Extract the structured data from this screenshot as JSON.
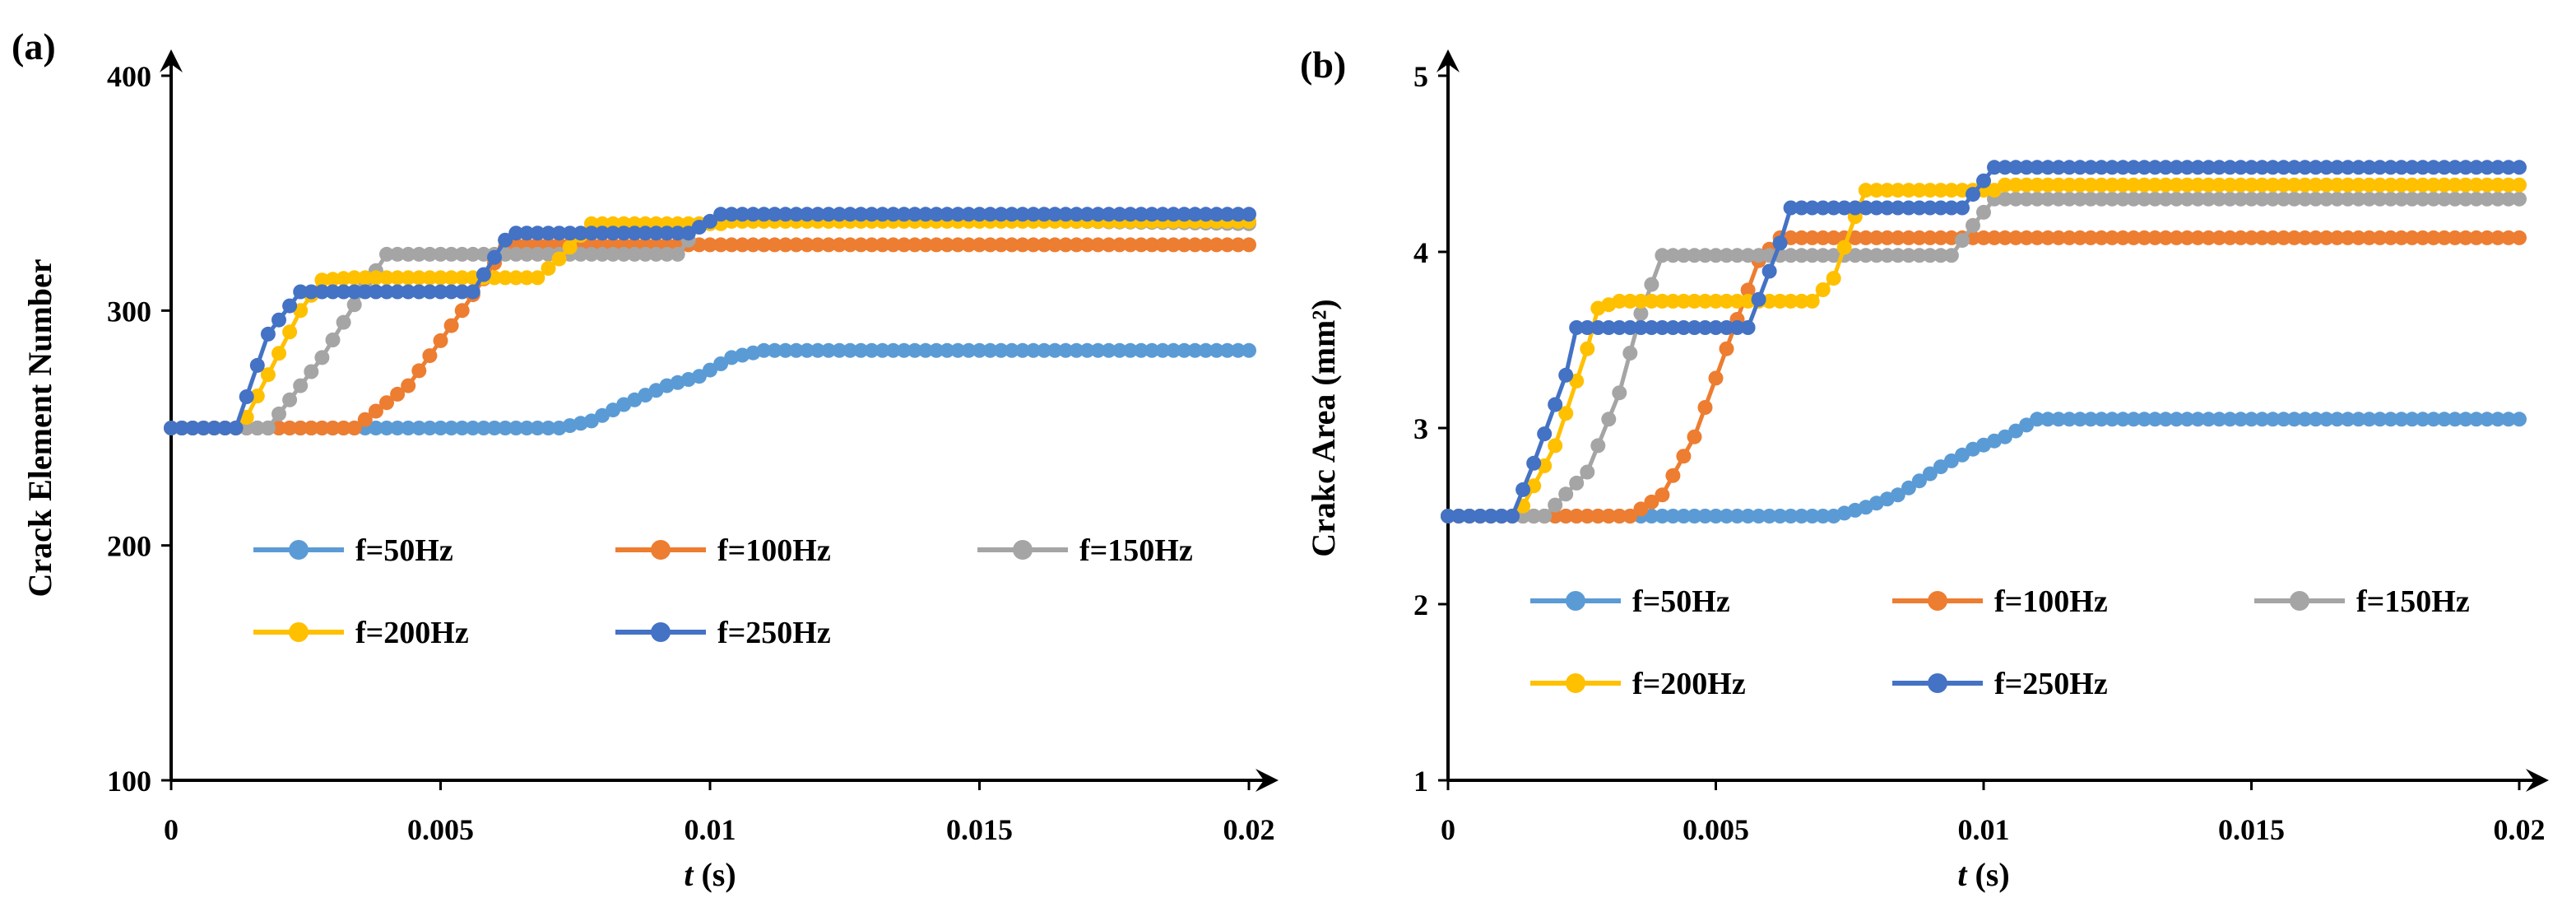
{
  "colors": {
    "f50": "#5B9BD5",
    "f100": "#ED7D31",
    "f150": "#A5A5A5",
    "f200": "#FFC000",
    "f250": "#4472C4"
  },
  "chart_data": [
    {
      "type": "line",
      "panel_label": "(a)",
      "xlabel_var": "t",
      "xlabel_unit": " (s)",
      "ylabel": "Crack Element Number",
      "xlim": [
        0,
        0.02
      ],
      "ylim": [
        100,
        400
      ],
      "xticks": [
        0,
        0.005,
        0.01,
        0.015,
        0.02
      ],
      "xtick_labels": [
        "0",
        "0.005",
        "0.01",
        "0.015",
        "0.02"
      ],
      "yticks": [
        100,
        200,
        300,
        400
      ],
      "ytick_labels": [
        "100",
        "200",
        "300",
        "400"
      ],
      "grid": false,
      "legend_position": "lower middle, inside plot",
      "series": [
        {
          "name": "f=50Hz",
          "color": "#5B9BD5",
          "key": [
            [
              0,
              250
            ],
            [
              0.0072,
              250
            ],
            [
              0.0078,
              253
            ],
            [
              0.0084,
              260
            ],
            [
              0.0092,
              268
            ],
            [
              0.0098,
              272
            ],
            [
              0.0104,
              280
            ],
            [
              0.011,
              283
            ],
            [
              0.02,
              283
            ]
          ]
        },
        {
          "name": "f=100Hz",
          "color": "#ED7D31",
          "key": [
            [
              0,
              250
            ],
            [
              0.0034,
              250
            ],
            [
              0.0044,
              268
            ],
            [
              0.0054,
              300
            ],
            [
              0.0062,
              327
            ],
            [
              0.0064,
              328
            ],
            [
              0.02,
              328
            ]
          ]
        },
        {
          "name": "f=150Hz",
          "color": "#A5A5A5",
          "key": [
            [
              0,
              250
            ],
            [
              0.0018,
              250
            ],
            [
              0.0028,
              280
            ],
            [
              0.0036,
              310
            ],
            [
              0.004,
              324
            ],
            [
              0.0094,
              324
            ],
            [
              0.0098,
              336
            ],
            [
              0.0102,
              340
            ],
            [
              0.02,
              337
            ]
          ]
        },
        {
          "name": "f=200Hz",
          "color": "#FFC000",
          "key": [
            [
              0,
              250
            ],
            [
              0.0013,
              250
            ],
            [
              0.0024,
              300
            ],
            [
              0.0028,
              313
            ],
            [
              0.0034,
              314
            ],
            [
              0.0068,
              314
            ],
            [
              0.0072,
              322
            ],
            [
              0.0078,
              337
            ],
            [
              0.0102,
              337
            ],
            [
              0.0104,
              338
            ],
            [
              0.02,
              338
            ]
          ]
        },
        {
          "name": "f=250Hz",
          "color": "#4472C4",
          "key": [
            [
              0,
              250
            ],
            [
              0.0012,
              250
            ],
            [
              0.0018,
              290
            ],
            [
              0.0024,
              308
            ],
            [
              0.0056,
              308
            ],
            [
              0.0062,
              330
            ],
            [
              0.0064,
              333
            ],
            [
              0.0096,
              333
            ],
            [
              0.01,
              338
            ],
            [
              0.0102,
              341
            ],
            [
              0.02,
              341
            ]
          ]
        }
      ]
    },
    {
      "type": "line",
      "panel_label": "(b)",
      "xlabel_var": "t",
      "xlabel_unit": " (s)",
      "ylabel": "Crakc Area (mm²)",
      "xlim": [
        0,
        0.02
      ],
      "ylim": [
        1,
        5
      ],
      "xticks": [
        0,
        0.005,
        0.01,
        0.015,
        0.02
      ],
      "xtick_labels": [
        "0",
        "0.005",
        "0.01",
        "0.015",
        "0.02"
      ],
      "yticks": [
        1,
        2,
        3,
        4,
        5
      ],
      "ytick_labels": [
        "1",
        "2",
        "3",
        "4",
        "5"
      ],
      "grid": false,
      "legend_position": "lower middle, inside plot",
      "series": [
        {
          "name": "f=50Hz",
          "color": "#5B9BD5",
          "key": [
            [
              0,
              2.5
            ],
            [
              0.0072,
              2.5
            ],
            [
              0.0078,
              2.55
            ],
            [
              0.0084,
              2.62
            ],
            [
              0.0092,
              2.78
            ],
            [
              0.0098,
              2.88
            ],
            [
              0.0104,
              2.95
            ],
            [
              0.011,
              3.05
            ],
            [
              0.02,
              3.05
            ]
          ]
        },
        {
          "name": "f=100Hz",
          "color": "#ED7D31",
          "key": [
            [
              0,
              2.5
            ],
            [
              0.0034,
              2.5
            ],
            [
              0.004,
              2.62
            ],
            [
              0.0046,
              2.95
            ],
            [
              0.0052,
              3.45
            ],
            [
              0.0058,
              3.95
            ],
            [
              0.0062,
              4.08
            ],
            [
              0.02,
              4.08
            ]
          ]
        },
        {
          "name": "f=150Hz",
          "color": "#A5A5A5",
          "key": [
            [
              0,
              2.5
            ],
            [
              0.0018,
              2.5
            ],
            [
              0.0026,
              2.75
            ],
            [
              0.0032,
              3.2
            ],
            [
              0.0036,
              3.65
            ],
            [
              0.004,
              3.98
            ],
            [
              0.0094,
              3.98
            ],
            [
              0.0098,
              4.15
            ],
            [
              0.0102,
              4.3
            ],
            [
              0.02,
              4.3
            ]
          ]
        },
        {
          "name": "f=200Hz",
          "color": "#FFC000",
          "key": [
            [
              0,
              2.5
            ],
            [
              0.0013,
              2.5
            ],
            [
              0.002,
              2.9
            ],
            [
              0.0026,
              3.45
            ],
            [
              0.0028,
              3.68
            ],
            [
              0.0032,
              3.72
            ],
            [
              0.0068,
              3.72
            ],
            [
              0.0072,
              3.85
            ],
            [
              0.0076,
              4.2
            ],
            [
              0.0078,
              4.35
            ],
            [
              0.0102,
              4.35
            ],
            [
              0.0104,
              4.38
            ],
            [
              0.02,
              4.38
            ]
          ]
        },
        {
          "name": "f=250Hz",
          "color": "#4472C4",
          "key": [
            [
              0,
              2.5
            ],
            [
              0.0012,
              2.5
            ],
            [
              0.0016,
              2.8
            ],
            [
              0.0022,
              3.3
            ],
            [
              0.0024,
              3.57
            ],
            [
              0.0056,
              3.57
            ],
            [
              0.0062,
              4.05
            ],
            [
              0.0064,
              4.25
            ],
            [
              0.0096,
              4.25
            ],
            [
              0.0102,
              4.48
            ],
            [
              0.02,
              4.48
            ]
          ]
        }
      ]
    }
  ]
}
